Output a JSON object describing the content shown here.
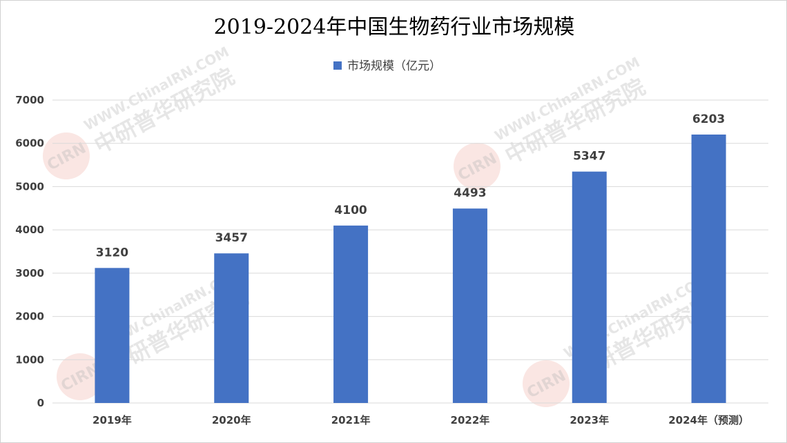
{
  "watermark": {
    "lines": [
      "WWW.ChinaIRN.COM",
      "中研普华研究院"
    ],
    "badge": "CIRN",
    "color": "#c8c8c8",
    "badge_color": "#f2b8b0"
  },
  "chart_data": {
    "type": "bar",
    "title": "2019-2024年中国生物药行业市场规模",
    "xlabel": "",
    "ylabel": "",
    "categories": [
      "2019年",
      "2020年",
      "2021年",
      "2022年",
      "2023年",
      "2024年（预测）"
    ],
    "series": [
      {
        "name": "市场规模（亿元）",
        "values": [
          3120,
          3457,
          4100,
          4493,
          5347,
          6203
        ],
        "color": "#4472c4"
      }
    ],
    "data_labels": [
      "3120",
      "3457",
      "4100",
      "4493",
      "5347",
      "6203"
    ],
    "ylim": [
      0,
      7000
    ],
    "yticks": [
      "0",
      "1000",
      "2000",
      "3000",
      "4000",
      "5000",
      "6000",
      "7000"
    ],
    "grid": true,
    "legend_position": "top"
  }
}
